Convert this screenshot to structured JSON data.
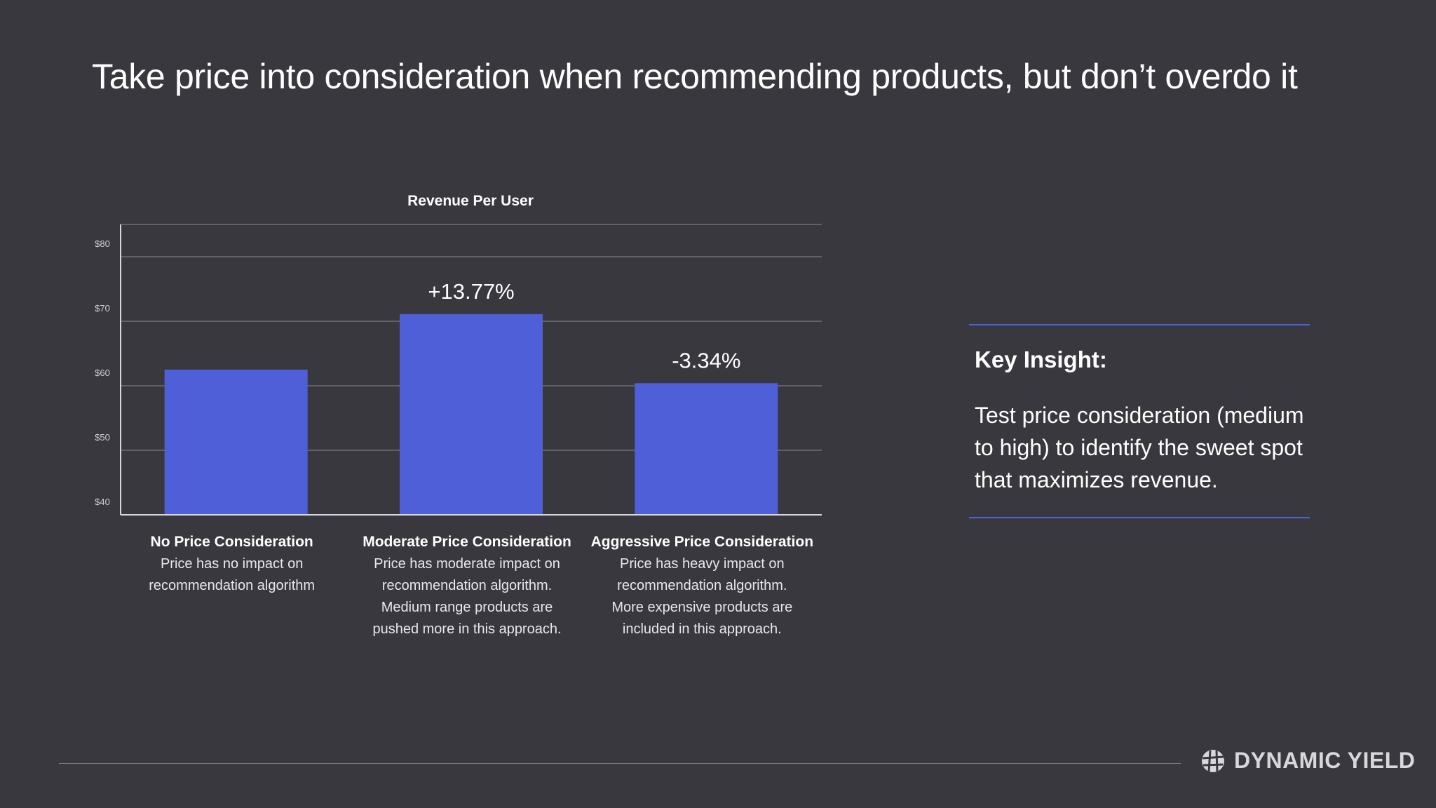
{
  "slide": {
    "title": "Take price into consideration when recommending products, but don’t overdo it"
  },
  "chart_data": {
    "type": "bar",
    "title": "Revenue Per User",
    "categories": [
      "No Price Consideration",
      "Moderate Price Consideration",
      "Aggressive Price Consideration"
    ],
    "descriptions": [
      [
        "Price has no impact on",
        "recommendation algorithm"
      ],
      [
        "Price has moderate impact on",
        "recommendation algorithm.",
        "Medium range products are",
        "pushed more in this approach."
      ],
      [
        "Price has heavy impact on",
        "recommendation algorithm.",
        "More expensive products are",
        "included in this approach."
      ]
    ],
    "values": [
      62.5,
      71.1,
      60.4
    ],
    "data_labels": [
      "",
      "+13.77%",
      "-3.34%"
    ],
    "yticks": [
      40,
      50,
      60,
      70,
      80
    ],
    "ytick_labels": [
      "$40",
      "$50",
      "$60",
      "$70",
      "$80"
    ],
    "ylim": [
      40,
      85
    ],
    "grid": true,
    "bar_color": "#4f5fd8",
    "xlabel": "",
    "ylabel": ""
  },
  "insight": {
    "heading": "Key Insight:",
    "body": "Test price consideration (medium to high) to identify the sweet spot that maximizes revenue."
  },
  "brand": {
    "name": "DYNAMIC YIELD",
    "logo_icon": "globe-icon"
  },
  "colors": {
    "background": "#38383e",
    "accent": "#4f5fd8"
  }
}
